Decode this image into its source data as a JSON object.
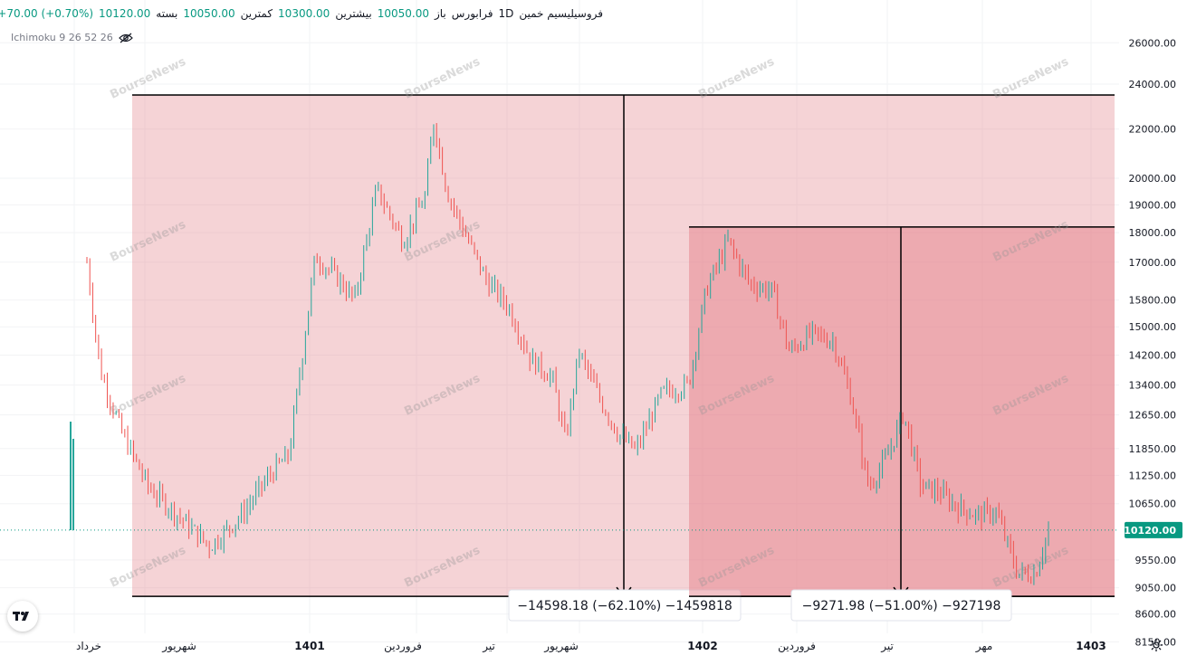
{
  "header": {
    "symbol": "فروسیلیسیم خمین",
    "interval": "1D",
    "exchange": "فرابورس",
    "open_label": "باز",
    "open_value": "10050.00",
    "high_label": "بیشترین",
    "high_value": "10300.00",
    "low_label": "کمترین",
    "low_value": "10050.00",
    "close_label": "بسته",
    "close_value": "10120.00",
    "change": "+70.00 (+0.70%)"
  },
  "indicator": {
    "label": "Ichimoku 9 26 52 26",
    "icon": "eye-crossed-icon"
  },
  "watermark": "BourseNews",
  "chart_data": {
    "type": "candlestick",
    "y_scale": "log",
    "ylim": [
      8000,
      26800
    ],
    "y_ticks": [
      "26000.00",
      "24000.00",
      "22000.00",
      "20000.00",
      "19000.00",
      "18000.00",
      "17000.00",
      "15800.00",
      "15000.00",
      "14200.00",
      "13400.00",
      "12650.00",
      "11850.00",
      "11250.00",
      "10650.00",
      "9550.00",
      "9050.00",
      "8600.00",
      "8150.00"
    ],
    "x_ticks": [
      "خرداد",
      "شهریور",
      "1401",
      "فروردین",
      "تیر",
      "شهریور",
      "1402",
      "فروردین",
      "تیر",
      "مهر",
      "1403"
    ],
    "last_price": "10120.00",
    "price_path": [
      {
        "t": 0,
        "v": 17000
      },
      {
        "t": 3,
        "v": 13800
      },
      {
        "t": 8,
        "v": 12200
      },
      {
        "t": 14,
        "v": 11000
      },
      {
        "t": 22,
        "v": 10300
      },
      {
        "t": 28,
        "v": 9800
      },
      {
        "t": 35,
        "v": 10400
      },
      {
        "t": 42,
        "v": 11300
      },
      {
        "t": 46,
        "v": 11700
      },
      {
        "t": 48,
        "v": 13300
      },
      {
        "t": 52,
        "v": 17200
      },
      {
        "t": 57,
        "v": 16500
      },
      {
        "t": 61,
        "v": 15800
      },
      {
        "t": 66,
        "v": 19600
      },
      {
        "t": 72,
        "v": 17700
      },
      {
        "t": 77,
        "v": 19300
      },
      {
        "t": 79,
        "v": 22400
      },
      {
        "t": 82,
        "v": 19500
      },
      {
        "t": 86,
        "v": 18000
      },
      {
        "t": 91,
        "v": 16400
      },
      {
        "t": 96,
        "v": 15600
      },
      {
        "t": 101,
        "v": 14100
      },
      {
        "t": 106,
        "v": 13600
      },
      {
        "t": 109,
        "v": 12000
      },
      {
        "t": 112,
        "v": 14300
      },
      {
        "t": 117,
        "v": 13000
      },
      {
        "t": 121,
        "v": 12200
      },
      {
        "t": 125,
        "v": 11800
      },
      {
        "t": 131,
        "v": 13200
      },
      {
        "t": 137,
        "v": 13400
      },
      {
        "t": 141,
        "v": 16100
      },
      {
        "t": 146,
        "v": 17700
      },
      {
        "t": 151,
        "v": 16300
      },
      {
        "t": 156,
        "v": 16100
      },
      {
        "t": 160,
        "v": 14300
      },
      {
        "t": 165,
        "v": 14800
      },
      {
        "t": 170,
        "v": 14600
      },
      {
        "t": 174,
        "v": 13100
      },
      {
        "t": 178,
        "v": 11000
      },
      {
        "t": 182,
        "v": 11600
      },
      {
        "t": 186,
        "v": 12700
      },
      {
        "t": 190,
        "v": 11000
      },
      {
        "t": 194,
        "v": 10900
      },
      {
        "t": 198,
        "v": 10600
      },
      {
        "t": 203,
        "v": 10400
      },
      {
        "t": 207,
        "v": 10500
      },
      {
        "t": 212,
        "v": 9300
      },
      {
        "t": 216,
        "v": 9300
      },
      {
        "t": 219,
        "v": 10120
      }
    ],
    "measurements": [
      {
        "label": "−14598.18 (−62.10%) −1459818",
        "from": 23500,
        "to": 8900
      },
      {
        "label": "−9271.98 (−51.00%) −927198",
        "from": 18200,
        "to": 8900
      }
    ]
  }
}
